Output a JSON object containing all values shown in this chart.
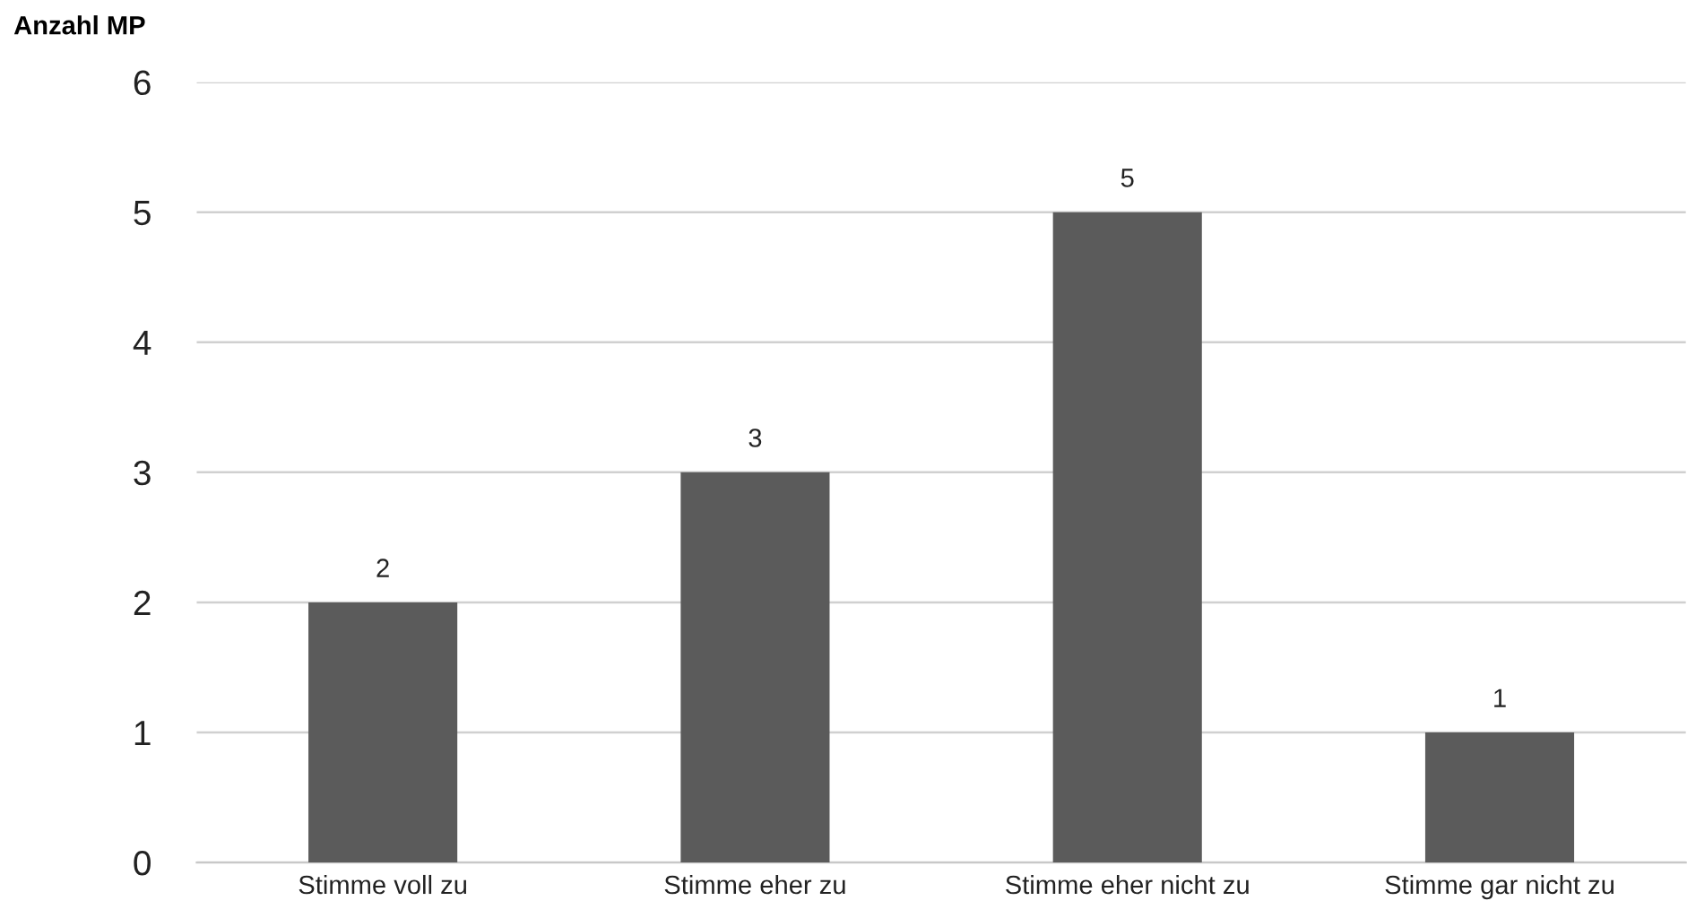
{
  "chart_data": {
    "type": "bar",
    "ylabel": "Anzahl MP",
    "categories": [
      "Stimme voll zu",
      "Stimme eher zu",
      "Stimme eher nicht zu",
      "Stimme gar nicht zu"
    ],
    "values": [
      2,
      3,
      5,
      1
    ],
    "color": "#5b5b5b",
    "ylim": [
      0,
      6
    ],
    "yticks": [
      0,
      1,
      2,
      3,
      4,
      5,
      6
    ],
    "grid": "y",
    "data_labels": true
  }
}
